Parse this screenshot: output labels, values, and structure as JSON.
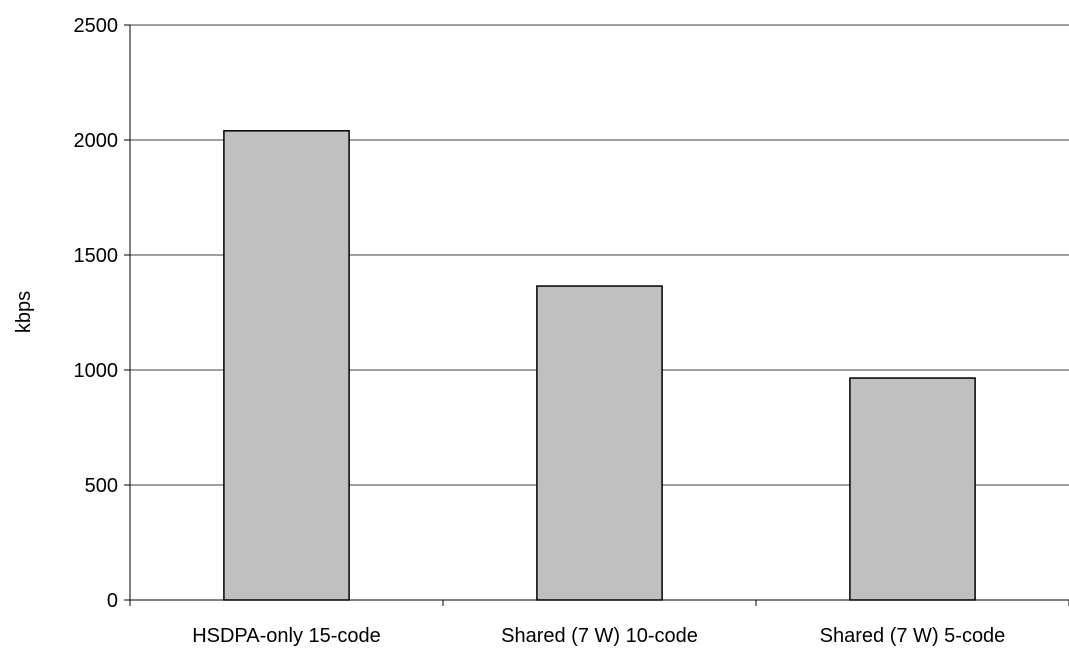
{
  "chart_data": {
    "type": "bar",
    "title": "",
    "xlabel": "",
    "ylabel": "kbps",
    "categories": [
      "HSDPA-only 15-code",
      "Shared (7 W) 10-code",
      "Shared (7 W) 5-code"
    ],
    "values": [
      2040,
      1365,
      965
    ],
    "ylim": [
      0,
      2500
    ],
    "yticks": [
      0,
      500,
      1000,
      1500,
      2000,
      2500
    ],
    "grid": true,
    "legend": "none",
    "bar_color": "#c0c0c0",
    "bar_stroke": "#000000",
    "grid_color": "#808080"
  }
}
